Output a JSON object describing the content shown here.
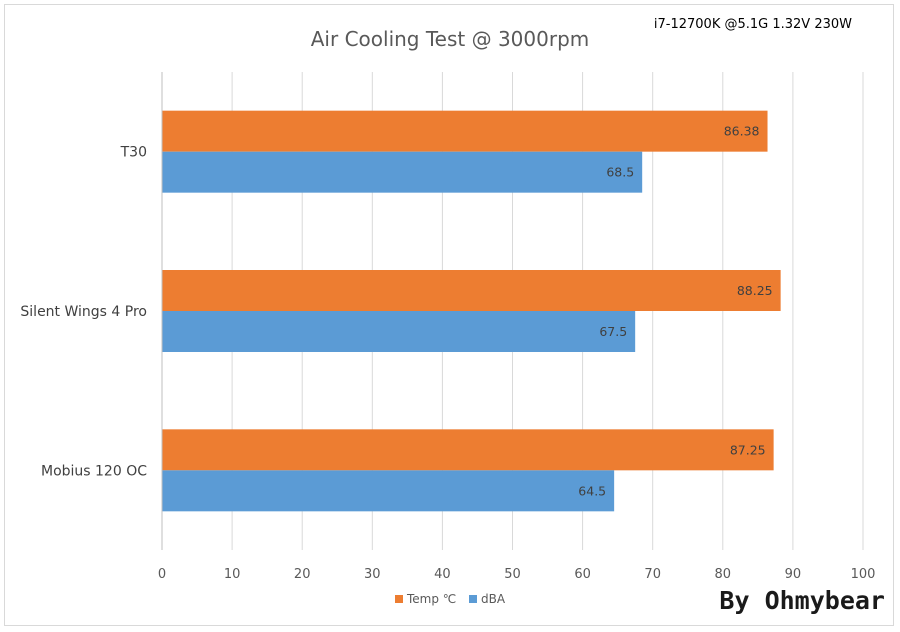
{
  "chart_data": {
    "type": "bar",
    "orientation": "horizontal",
    "title": "Air Cooling Test @ 3000rpm",
    "subtitle": "i7-12700K @5.1G 1.32V 230W",
    "categories": [
      "T30",
      "Silent Wings 4 Pro",
      "Mobius 120 OC"
    ],
    "series": [
      {
        "name": "Temp ℃",
        "color": "#ed7d31",
        "values": [
          86.38,
          88.25,
          87.25
        ],
        "labels": [
          "86.38",
          "88.25",
          "87.25"
        ]
      },
      {
        "name": "dBA",
        "color": "#5b9bd5",
        "values": [
          68.5,
          67.5,
          64.5
        ],
        "labels": [
          "68.5",
          "67.5",
          "64.5"
        ]
      }
    ],
    "xlim": [
      0,
      100
    ],
    "xticks": [
      0,
      10,
      20,
      30,
      40,
      50,
      60,
      70,
      80,
      90,
      100
    ],
    "grid": true,
    "legend": "bottom"
  },
  "watermark": "By Ohmybear"
}
